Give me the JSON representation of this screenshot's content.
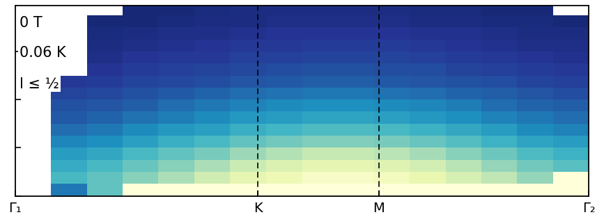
{
  "chart_data": {
    "type": "heatmap",
    "annotations": [
      "0 T",
      "0.06 K",
      "l ≤ ½"
    ],
    "x_edges": [
      0,
      0.099,
      0.197,
      0.296,
      0.394,
      0.493,
      0.591,
      0.69,
      0.789,
      0.887,
      0.986,
      1.084,
      1.183,
      1.281,
      1.38,
      1.478,
      1.577
    ],
    "y_edges": [
      0,
      0.25,
      0.5,
      0.75,
      1.0,
      1.25,
      1.5,
      1.75,
      2.0,
      2.25,
      2.5,
      2.75,
      3.0,
      3.25,
      3.5,
      3.75,
      4.0
    ],
    "cells": [
      [
        null,
        0.25,
        0.45,
        1,
        1,
        1,
        1,
        1,
        1,
        1,
        1,
        1,
        1,
        1,
        1,
        1
      ],
      [
        null,
        0.41,
        0.45,
        0.51,
        0.56,
        0.62,
        0.68,
        0.71,
        0.75,
        0.75,
        0.73,
        0.69,
        0.64,
        0.59,
        0.53,
        0.9
      ],
      [
        null,
        0.37,
        0.41,
        0.46,
        0.51,
        0.56,
        0.61,
        0.65,
        0.68,
        0.68,
        0.66,
        0.63,
        0.58,
        0.53,
        0.48,
        0.44
      ],
      [
        null,
        0.33,
        0.36,
        0.41,
        0.45,
        0.49,
        0.54,
        0.57,
        0.6,
        0.6,
        0.58,
        0.55,
        0.51,
        0.47,
        0.42,
        0.39
      ],
      [
        null,
        0.28,
        0.3,
        0.34,
        0.38,
        0.41,
        0.45,
        0.48,
        0.5,
        0.5,
        0.49,
        0.46,
        0.43,
        0.39,
        0.35,
        0.33
      ],
      [
        null,
        0.23,
        0.25,
        0.29,
        0.32,
        0.34,
        0.38,
        0.4,
        0.42,
        0.42,
        0.41,
        0.39,
        0.36,
        0.33,
        0.29,
        0.27
      ],
      [
        null,
        0.19,
        0.21,
        0.24,
        0.26,
        0.29,
        0.32,
        0.33,
        0.35,
        0.35,
        0.34,
        0.32,
        0.3,
        0.27,
        0.25,
        0.23
      ],
      [
        null,
        0.17,
        0.18,
        0.2,
        0.23,
        0.25,
        0.27,
        0.29,
        0.3,
        0.3,
        0.29,
        0.28,
        0.26,
        0.23,
        0.21,
        0.2
      ],
      [
        null,
        0.14,
        0.15,
        0.17,
        0.19,
        0.21,
        0.23,
        0.24,
        0.25,
        0.25,
        0.24,
        0.23,
        0.21,
        0.2,
        0.18,
        0.16
      ],
      [
        null,
        0.11,
        0.12,
        0.14,
        0.15,
        0.16,
        0.18,
        0.19,
        0.2,
        0.2,
        0.19,
        0.18,
        0.17,
        0.16,
        0.14,
        0.13
      ],
      [
        null,
        null,
        0.1,
        0.12,
        0.13,
        0.14,
        0.15,
        0.16,
        0.17,
        0.17,
        0.16,
        0.16,
        0.14,
        0.13,
        0.12,
        0.11
      ],
      [
        null,
        null,
        0.08,
        0.1,
        0.11,
        0.11,
        0.13,
        0.13,
        0.14,
        0.14,
        0.14,
        0.13,
        0.12,
        0.11,
        0.1,
        0.09
      ],
      [
        null,
        null,
        0.07,
        0.08,
        0.09,
        0.1,
        0.11,
        0.11,
        0.12,
        0.12,
        0.12,
        0.11,
        0.1,
        0.09,
        0.08,
        0.08
      ],
      [
        null,
        null,
        0.06,
        0.07,
        0.08,
        0.08,
        0.09,
        0.1,
        0.1,
        0.1,
        0.1,
        0.09,
        0.09,
        0.08,
        0.07,
        0.07
      ],
      [
        null,
        null,
        0.05,
        0.05,
        0.06,
        0.07,
        0.07,
        0.08,
        0.08,
        0.08,
        0.08,
        0.07,
        0.07,
        0.06,
        0.06,
        0.05
      ],
      [
        null,
        null,
        null,
        0.05,
        0.05,
        0.06,
        0.07,
        0.07,
        0.07,
        0.07,
        0.07,
        0.06,
        0.06,
        0.05,
        0.05,
        null
      ]
    ],
    "color_range": [
      0,
      0.8
    ],
    "xlim": [
      0,
      1.577
    ],
    "xticks": [
      {
        "value": 0,
        "label": "Γ₁"
      },
      {
        "value": 0.667,
        "label": "K"
      },
      {
        "value": 1.0,
        "label": "M"
      },
      {
        "value": 1.577,
        "label": "Γ₂"
      }
    ],
    "ylim": [
      0,
      3.95
    ],
    "yticks": [
      0,
      1,
      2,
      3
    ],
    "tick_labels": "x"
  }
}
